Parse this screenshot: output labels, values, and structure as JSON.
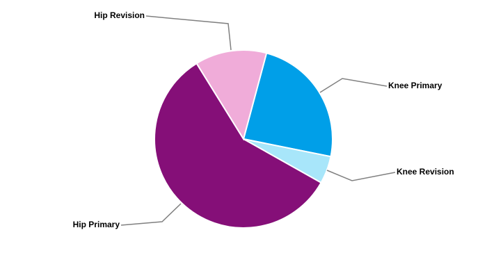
{
  "chart_data": {
    "type": "pie",
    "categories": [
      "Knee Primary",
      "Knee Revision",
      "Hip Primary",
      "Hip Revision"
    ],
    "values": [
      24,
      5,
      58,
      13
    ],
    "colors": [
      "#009fe8",
      "#a8e6fa",
      "#850f78",
      "#f0acd9"
    ]
  }
}
